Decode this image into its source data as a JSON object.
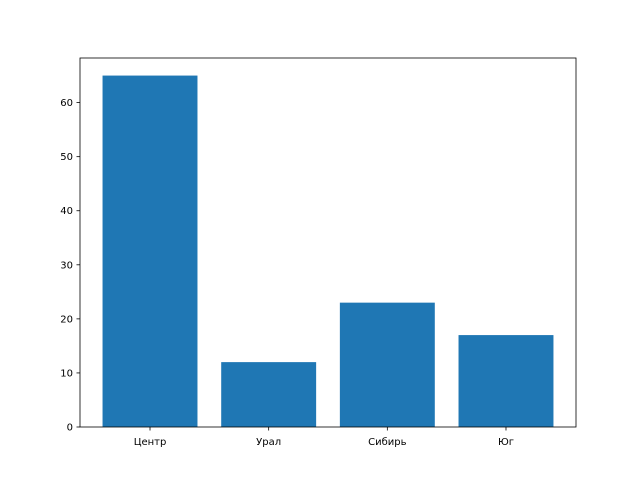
{
  "chart_data": {
    "type": "bar",
    "title": "",
    "xlabel": "",
    "ylabel": "",
    "categories": [
      "Центр",
      "Урал",
      "Сибирь",
      "Юг"
    ],
    "values": [
      65,
      12,
      23,
      17
    ],
    "ylim": [
      0,
      68.25
    ],
    "yticks": [
      0,
      10,
      20,
      30,
      40,
      50,
      60
    ],
    "grid": false,
    "bar_color": "#1f77b4"
  }
}
